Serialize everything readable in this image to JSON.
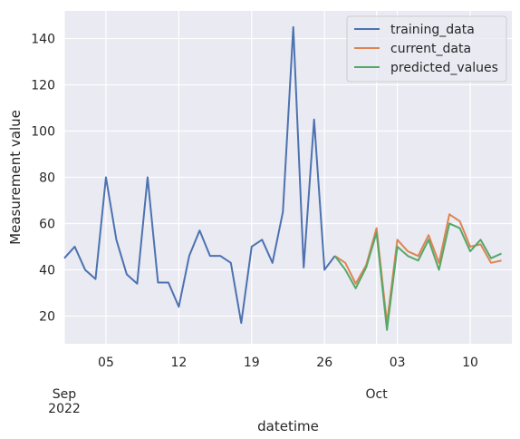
{
  "chart_data": {
    "type": "line",
    "title": "",
    "xlabel": "datetime",
    "ylabel": "Measurement value",
    "x_date_range": [
      "2022-09-01",
      "2022-10-14"
    ],
    "ylim": [
      8,
      152
    ],
    "yticks": [
      20,
      40,
      60,
      80,
      100,
      120,
      140
    ],
    "xticks": [
      {
        "date": "2022-09-05",
        "label": "05"
      },
      {
        "date": "2022-09-12",
        "label": "12"
      },
      {
        "date": "2022-09-19",
        "label": "19"
      },
      {
        "date": "2022-09-26",
        "label": "26"
      },
      {
        "date": "2022-10-03",
        "label": "03"
      },
      {
        "date": "2022-10-10",
        "label": "10"
      }
    ],
    "month_labels": [
      {
        "date": "2022-09-01",
        "label": "Sep",
        "year": "2022"
      },
      {
        "date": "2022-10-01",
        "label": "Oct",
        "year": ""
      }
    ],
    "grid": true,
    "legend_position": "top-right",
    "series": [
      {
        "name": "training_data",
        "color": "#4c72b0",
        "points": [
          [
            "2022-09-01",
            45
          ],
          [
            "2022-09-02",
            50
          ],
          [
            "2022-09-03",
            40
          ],
          [
            "2022-09-04",
            36
          ],
          [
            "2022-09-05",
            80
          ],
          [
            "2022-09-06",
            53
          ],
          [
            "2022-09-07",
            38
          ],
          [
            "2022-09-08",
            34
          ],
          [
            "2022-09-09",
            80
          ],
          [
            "2022-09-10",
            34.5
          ],
          [
            "2022-09-11",
            34.5
          ],
          [
            "2022-09-12",
            24
          ],
          [
            "2022-09-13",
            46
          ],
          [
            "2022-09-14",
            57
          ],
          [
            "2022-09-15",
            46
          ],
          [
            "2022-09-16",
            46
          ],
          [
            "2022-09-17",
            43
          ],
          [
            "2022-09-18",
            17
          ],
          [
            "2022-09-19",
            50
          ],
          [
            "2022-09-20",
            53
          ],
          [
            "2022-09-21",
            43
          ],
          [
            "2022-09-22",
            65
          ],
          [
            "2022-09-23",
            145
          ],
          [
            "2022-09-24",
            41
          ],
          [
            "2022-09-25",
            105
          ],
          [
            "2022-09-26",
            40
          ],
          [
            "2022-09-27",
            46
          ]
        ]
      },
      {
        "name": "current_data",
        "color": "#dd8452",
        "points": [
          [
            "2022-09-27",
            46
          ],
          [
            "2022-09-28",
            43
          ],
          [
            "2022-09-29",
            34
          ],
          [
            "2022-09-30",
            42
          ],
          [
            "2022-10-01",
            58
          ],
          [
            "2022-10-02",
            17
          ],
          [
            "2022-10-03",
            53
          ],
          [
            "2022-10-04",
            48
          ],
          [
            "2022-10-05",
            46
          ],
          [
            "2022-10-06",
            55
          ],
          [
            "2022-10-07",
            43
          ],
          [
            "2022-10-08",
            64
          ],
          [
            "2022-10-09",
            61
          ],
          [
            "2022-10-10",
            50
          ],
          [
            "2022-10-11",
            51
          ],
          [
            "2022-10-12",
            43
          ],
          [
            "2022-10-13",
            44
          ]
        ]
      },
      {
        "name": "predicted_values",
        "color": "#55a868",
        "points": [
          [
            "2022-09-27",
            46
          ],
          [
            "2022-09-28",
            40
          ],
          [
            "2022-09-29",
            32
          ],
          [
            "2022-09-30",
            41
          ],
          [
            "2022-10-01",
            56
          ],
          [
            "2022-10-02",
            14
          ],
          [
            "2022-10-03",
            50
          ],
          [
            "2022-10-04",
            46
          ],
          [
            "2022-10-05",
            44
          ],
          [
            "2022-10-06",
            53
          ],
          [
            "2022-10-07",
            40
          ],
          [
            "2022-10-08",
            60
          ],
          [
            "2022-10-09",
            58
          ],
          [
            "2022-10-10",
            48
          ],
          [
            "2022-10-11",
            53
          ],
          [
            "2022-10-12",
            45
          ],
          [
            "2022-10-13",
            47
          ]
        ]
      }
    ]
  }
}
